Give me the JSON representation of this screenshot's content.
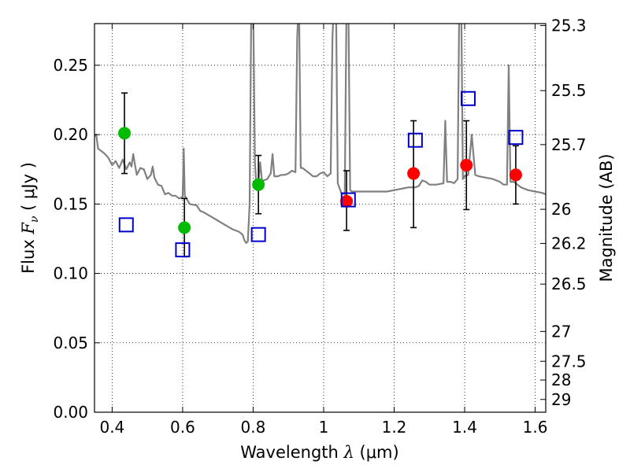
{
  "chart_data": {
    "type": "scatter",
    "xlabel_parts": {
      "pre": "Wavelength  ",
      "math": "λ",
      "post": " (μm)"
    },
    "ylabel_parts": {
      "pre": "Flux  ",
      "math": "F",
      "sub": "ν",
      "post": "  ( μJy )"
    },
    "y2label": "Magnitude (AB)",
    "xlim": [
      0.35,
      1.63
    ],
    "ylim": [
      0.0,
      0.28
    ],
    "grid": true,
    "x_ticks": [
      0.4,
      0.6,
      0.8,
      1.0,
      1.2,
      1.4,
      1.6
    ],
    "x_tick_labels": [
      "0.4",
      "0.6",
      "0.8",
      "1",
      "1.2",
      "1.4",
      "1.6"
    ],
    "y_ticks": [
      0.0,
      0.05,
      0.1,
      0.15,
      0.2,
      0.25
    ],
    "y_tick_labels": [
      "0.00",
      "0.05",
      "0.10",
      "0.15",
      "0.20",
      "0.25"
    ],
    "mag_ticks": [
      {
        "label": "25.3",
        "flux": 0.2786
      },
      {
        "label": "25.5",
        "flux": 0.2317
      },
      {
        "label": "25.7",
        "flux": 0.1928
      },
      {
        "label": "26",
        "flux": 0.1462
      },
      {
        "label": "26.2",
        "flux": 0.1216
      },
      {
        "label": "26.5",
        "flux": 0.0923
      },
      {
        "label": "27",
        "flux": 0.0582
      },
      {
        "label": "27.5",
        "flux": 0.0367
      },
      {
        "label": "28",
        "flux": 0.0232
      },
      {
        "label": "29",
        "flux": 0.0092
      }
    ],
    "series": [
      {
        "color": "#808080",
        "style": "line",
        "points": [
          [
            0.35,
            0.199
          ],
          [
            0.355,
            0.2
          ],
          [
            0.36,
            0.19
          ],
          [
            0.37,
            0.188
          ],
          [
            0.38,
            0.186
          ],
          [
            0.39,
            0.183
          ],
          [
            0.4,
            0.178
          ],
          [
            0.41,
            0.181
          ],
          [
            0.42,
            0.176
          ],
          [
            0.43,
            0.182
          ],
          [
            0.44,
            0.175
          ],
          [
            0.45,
            0.18
          ],
          [
            0.455,
            0.177
          ],
          [
            0.46,
            0.186
          ],
          [
            0.465,
            0.178
          ],
          [
            0.47,
            0.171
          ],
          [
            0.48,
            0.176
          ],
          [
            0.49,
            0.175
          ],
          [
            0.5,
            0.168
          ],
          [
            0.51,
            0.171
          ],
          [
            0.515,
            0.177
          ],
          [
            0.52,
            0.169
          ],
          [
            0.53,
            0.164
          ],
          [
            0.54,
            0.163
          ],
          [
            0.55,
            0.157
          ],
          [
            0.56,
            0.158
          ],
          [
            0.57,
            0.156
          ],
          [
            0.58,
            0.156
          ],
          [
            0.59,
            0.154
          ],
          [
            0.6,
            0.155
          ],
          [
            0.603,
            0.19
          ],
          [
            0.606,
            0.156
          ],
          [
            0.62,
            0.15
          ],
          [
            0.64,
            0.149
          ],
          [
            0.65,
            0.145
          ],
          [
            0.66,
            0.144
          ],
          [
            0.68,
            0.141
          ],
          [
            0.7,
            0.138
          ],
          [
            0.72,
            0.135
          ],
          [
            0.74,
            0.132
          ],
          [
            0.76,
            0.13
          ],
          [
            0.77,
            0.128
          ],
          [
            0.775,
            0.124
          ],
          [
            0.78,
            0.122
          ],
          [
            0.785,
            0.123
          ],
          [
            0.79,
            0.15
          ],
          [
            0.795,
            0.3
          ],
          [
            0.8,
            0.3
          ],
          [
            0.805,
            0.18
          ],
          [
            0.81,
            0.16
          ],
          [
            0.815,
            0.166
          ],
          [
            0.82,
            0.18
          ],
          [
            0.825,
            0.167
          ],
          [
            0.83,
            0.167
          ],
          [
            0.84,
            0.168
          ],
          [
            0.85,
            0.172
          ],
          [
            0.855,
            0.186
          ],
          [
            0.86,
            0.17
          ],
          [
            0.87,
            0.17
          ],
          [
            0.88,
            0.171
          ],
          [
            0.89,
            0.171
          ],
          [
            0.9,
            0.172
          ],
          [
            0.91,
            0.174
          ],
          [
            0.92,
            0.173
          ],
          [
            0.925,
            0.27
          ],
          [
            0.93,
            0.3
          ],
          [
            0.935,
            0.176
          ],
          [
            0.94,
            0.176
          ],
          [
            0.95,
            0.174
          ],
          [
            0.96,
            0.172
          ],
          [
            0.97,
            0.17
          ],
          [
            0.98,
            0.17
          ],
          [
            0.99,
            0.172
          ],
          [
            1.0,
            0.173
          ],
          [
            1.01,
            0.17
          ],
          [
            1.02,
            0.172
          ],
          [
            1.025,
            0.27
          ],
          [
            1.03,
            0.3
          ],
          [
            1.035,
            0.3
          ],
          [
            1.04,
            0.165
          ],
          [
            1.05,
            0.158
          ],
          [
            1.06,
            0.157
          ],
          [
            1.065,
            0.3
          ],
          [
            1.07,
            0.3
          ],
          [
            1.075,
            0.16
          ],
          [
            1.08,
            0.159
          ],
          [
            1.09,
            0.159
          ],
          [
            1.1,
            0.159
          ],
          [
            1.12,
            0.159
          ],
          [
            1.14,
            0.159
          ],
          [
            1.16,
            0.159
          ],
          [
            1.18,
            0.159
          ],
          [
            1.2,
            0.16
          ],
          [
            1.22,
            0.161
          ],
          [
            1.24,
            0.162
          ],
          [
            1.26,
            0.162
          ],
          [
            1.27,
            0.163
          ],
          [
            1.28,
            0.167
          ],
          [
            1.29,
            0.166
          ],
          [
            1.3,
            0.164
          ],
          [
            1.32,
            0.164
          ],
          [
            1.34,
            0.165
          ],
          [
            1.345,
            0.21
          ],
          [
            1.35,
            0.166
          ],
          [
            1.36,
            0.166
          ],
          [
            1.37,
            0.165
          ],
          [
            1.38,
            0.168
          ],
          [
            1.385,
            0.3
          ],
          [
            1.39,
            0.3
          ],
          [
            1.395,
            0.168
          ],
          [
            1.4,
            0.17
          ],
          [
            1.41,
            0.171
          ],
          [
            1.42,
            0.2
          ],
          [
            1.43,
            0.171
          ],
          [
            1.44,
            0.17
          ],
          [
            1.46,
            0.169
          ],
          [
            1.48,
            0.168
          ],
          [
            1.5,
            0.166
          ],
          [
            1.51,
            0.164
          ],
          [
            1.52,
            0.164
          ],
          [
            1.525,
            0.25
          ],
          [
            1.53,
            0.166
          ],
          [
            1.54,
            0.166
          ],
          [
            1.55,
            0.164
          ],
          [
            1.56,
            0.162
          ],
          [
            1.58,
            0.16
          ],
          [
            1.6,
            0.159
          ],
          [
            1.62,
            0.158
          ],
          [
            1.63,
            0.157
          ]
        ]
      },
      {
        "color": "#00bb00",
        "style": "filled-circle",
        "points": [
          {
            "x": 0.435,
            "y": 0.201,
            "lo": 0.172,
            "hi": 0.23
          },
          {
            "x": 0.605,
            "y": 0.133,
            "lo": 0.112,
            "hi": 0.154
          },
          {
            "x": 0.815,
            "y": 0.164,
            "lo": 0.143,
            "hi": 0.185
          }
        ]
      },
      {
        "color": "#ff0000",
        "style": "filled-circle",
        "points": [
          {
            "x": 1.065,
            "y": 0.152,
            "lo": 0.131,
            "hi": 0.174
          },
          {
            "x": 1.255,
            "y": 0.172,
            "lo": 0.133,
            "hi": 0.21
          },
          {
            "x": 1.405,
            "y": 0.178,
            "lo": 0.146,
            "hi": 0.21
          },
          {
            "x": 1.545,
            "y": 0.171,
            "lo": 0.15,
            "hi": 0.192
          }
        ]
      },
      {
        "color": "#0000cc",
        "style": "open-square",
        "points": [
          {
            "x": 0.44,
            "y": 0.135
          },
          {
            "x": 0.6,
            "y": 0.117
          },
          {
            "x": 0.815,
            "y": 0.128
          },
          {
            "x": 1.07,
            "y": 0.153
          },
          {
            "x": 1.26,
            "y": 0.196
          },
          {
            "x": 1.41,
            "y": 0.226
          },
          {
            "x": 1.545,
            "y": 0.198
          }
        ]
      }
    ]
  }
}
